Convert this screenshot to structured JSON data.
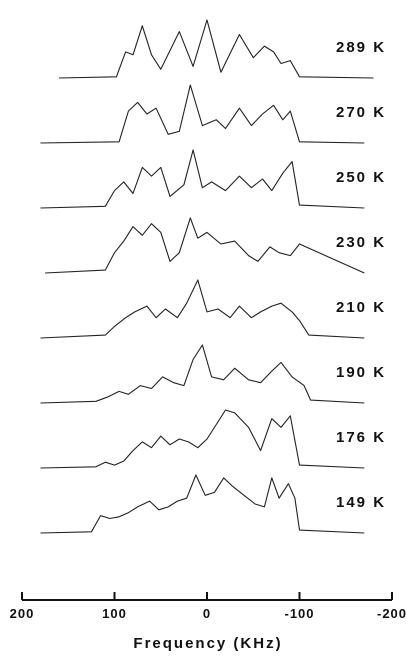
{
  "chart_data": {
    "type": "line",
    "xlabel": "Frequency (KHz)",
    "ylabel": "",
    "xlim": [
      200,
      -200
    ],
    "x_ticks": [
      200,
      100,
      0,
      -100,
      -200
    ],
    "x_tick_labels": [
      "200",
      "100",
      "0",
      "-100",
      "-200"
    ],
    "grid": false,
    "legend": "none",
    "series": [
      {
        "name": "289 K",
        "label": "289 K",
        "x": [
          160,
          98,
          88,
          80,
          70,
          60,
          50,
          30,
          15,
          0,
          -15,
          -35,
          -50,
          -62,
          -72,
          -80,
          -90,
          -100,
          -180
        ],
        "y": [
          0,
          0.02,
          0.45,
          0.4,
          0.9,
          0.4,
          0.15,
          0.8,
          0.2,
          1.0,
          0.1,
          0.75,
          0.35,
          0.55,
          0.45,
          0.25,
          0.3,
          0.02,
          0
        ]
      },
      {
        "name": "270 K",
        "label": "270 K",
        "x": [
          180,
          95,
          85,
          75,
          65,
          55,
          42,
          30,
          18,
          5,
          -10,
          -20,
          -35,
          -48,
          -60,
          -72,
          -82,
          -90,
          -100,
          -170
        ],
        "y": [
          0,
          0.02,
          0.55,
          0.7,
          0.5,
          0.6,
          0.15,
          0.2,
          1.0,
          0.3,
          0.4,
          0.25,
          0.6,
          0.3,
          0.5,
          0.65,
          0.4,
          0.55,
          0.02,
          0
        ]
      },
      {
        "name": "250 K",
        "label": "250 K",
        "x": [
          180,
          110,
          100,
          90,
          80,
          70,
          60,
          50,
          40,
          25,
          15,
          5,
          -5,
          -20,
          -35,
          -48,
          -60,
          -70,
          -82,
          -92,
          -100,
          -170
        ],
        "y": [
          0,
          0.03,
          0.3,
          0.45,
          0.25,
          0.7,
          0.55,
          0.7,
          0.2,
          0.4,
          1.0,
          0.35,
          0.45,
          0.3,
          0.55,
          0.35,
          0.5,
          0.3,
          0.6,
          0.8,
          0.05,
          0
        ]
      },
      {
        "name": "230 K",
        "label": "230 K",
        "x": [
          175,
          110,
          100,
          90,
          80,
          70,
          60,
          50,
          40,
          30,
          18,
          10,
          0,
          -15,
          -30,
          -45,
          -55,
          -68,
          -78,
          -90,
          -100,
          -170
        ],
        "y": [
          0,
          0.05,
          0.35,
          0.55,
          0.8,
          0.65,
          0.85,
          0.7,
          0.2,
          0.35,
          0.95,
          0.6,
          0.7,
          0.5,
          0.55,
          0.3,
          0.2,
          0.45,
          0.35,
          0.3,
          0.5,
          0
        ]
      },
      {
        "name": "210 K",
        "label": "210 K",
        "x": [
          180,
          110,
          100,
          88,
          78,
          65,
          55,
          45,
          32,
          22,
          10,
          0,
          -12,
          -25,
          -35,
          -48,
          -58,
          -70,
          -80,
          -92,
          -100,
          -110,
          -170
        ],
        "y": [
          0,
          0.05,
          0.2,
          0.35,
          0.45,
          0.55,
          0.35,
          0.5,
          0.35,
          0.6,
          1.0,
          0.45,
          0.5,
          0.35,
          0.55,
          0.35,
          0.45,
          0.55,
          0.6,
          0.45,
          0.3,
          0.05,
          0
        ]
      },
      {
        "name": "190 K",
        "label": "190 K",
        "x": [
          180,
          120,
          108,
          95,
          85,
          72,
          60,
          48,
          36,
          25,
          15,
          5,
          -5,
          -18,
          -30,
          -45,
          -58,
          -70,
          -80,
          -92,
          -105,
          -112,
          -170
        ],
        "y": [
          0,
          0.03,
          0.1,
          0.2,
          0.15,
          0.3,
          0.25,
          0.45,
          0.35,
          0.3,
          0.75,
          1.0,
          0.45,
          0.4,
          0.6,
          0.4,
          0.35,
          0.55,
          0.7,
          0.45,
          0.3,
          0.05,
          0
        ]
      },
      {
        "name": "176 K",
        "label": "176 K",
        "x": [
          180,
          120,
          110,
          100,
          90,
          80,
          70,
          60,
          50,
          40,
          30,
          20,
          10,
          0,
          -10,
          -20,
          -30,
          -45,
          -58,
          -70,
          -80,
          -90,
          -100,
          -170
        ],
        "y": [
          0,
          0.02,
          0.1,
          0.05,
          0.12,
          0.3,
          0.45,
          0.35,
          0.55,
          0.4,
          0.5,
          0.45,
          0.35,
          0.5,
          0.75,
          1.0,
          0.95,
          0.7,
          0.3,
          0.85,
          0.7,
          0.9,
          0.05,
          0
        ]
      },
      {
        "name": "149 K",
        "label": "149 K",
        "x": [
          180,
          125,
          115,
          105,
          95,
          85,
          75,
          62,
          52,
          42,
          32,
          22,
          12,
          2,
          -8,
          -18,
          -28,
          -40,
          -52,
          -62,
          -70,
          -78,
          -88,
          -95,
          -100,
          -170
        ],
        "y": [
          0,
          0.02,
          0.3,
          0.25,
          0.28,
          0.35,
          0.45,
          0.55,
          0.4,
          0.45,
          0.55,
          0.6,
          1.0,
          0.65,
          0.7,
          0.95,
          0.8,
          0.65,
          0.5,
          0.45,
          0.95,
          0.6,
          0.85,
          0.6,
          0.05,
          0
        ]
      }
    ]
  }
}
